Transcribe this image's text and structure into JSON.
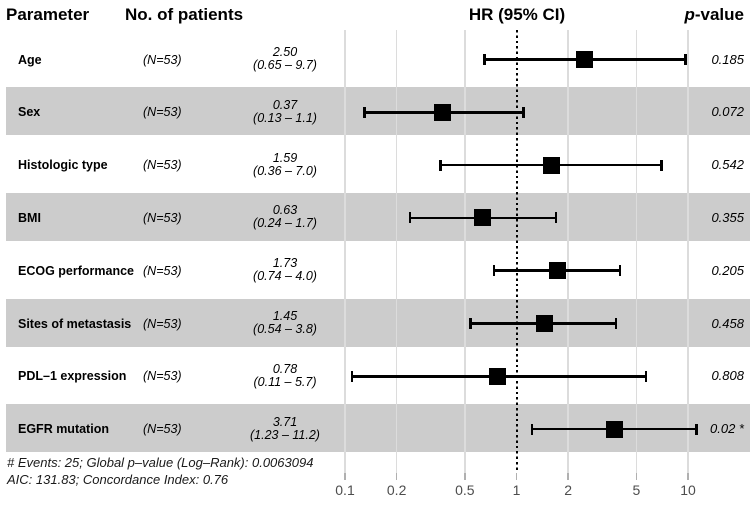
{
  "header": {
    "parameter": "Parameter",
    "patients": "No. of patients",
    "hr_ci": "HR (95% CI)",
    "pvalue_prefix": "p",
    "pvalue_suffix": "-value"
  },
  "chart_data": {
    "type": "forest",
    "x_axis": {
      "scale": "log10",
      "range": [
        0.1,
        10
      ],
      "ticks": [
        0.1,
        0.2,
        0.5,
        1,
        2,
        5,
        10
      ],
      "tick_labels": [
        "0.1",
        "0.2",
        "0.5",
        "1",
        "2",
        "5",
        "10"
      ],
      "reference_line": 1
    },
    "rows": [
      {
        "parameter": "Age",
        "n_label": "(N=53)",
        "estimate": 2.5,
        "ci_low": 0.65,
        "ci_high": 9.7,
        "estimate_label": "2.50",
        "ci_label": "(0.65 – 9.7)",
        "p_label": "0.185",
        "shaded": false
      },
      {
        "parameter": "Sex",
        "n_label": "(N=53)",
        "estimate": 0.37,
        "ci_low": 0.13,
        "ci_high": 1.1,
        "estimate_label": "0.37",
        "ci_label": "(0.13 – 1.1)",
        "p_label": "0.072",
        "shaded": true
      },
      {
        "parameter": "Histologic type",
        "n_label": "(N=53)",
        "estimate": 1.59,
        "ci_low": 0.36,
        "ci_high": 7.0,
        "estimate_label": "1.59",
        "ci_label": "(0.36 – 7.0)",
        "p_label": "0.542",
        "shaded": false
      },
      {
        "parameter": "BMI",
        "n_label": "(N=53)",
        "estimate": 0.63,
        "ci_low": 0.24,
        "ci_high": 1.7,
        "estimate_label": "0.63",
        "ci_label": "(0.24 – 1.7)",
        "p_label": "0.355",
        "shaded": true
      },
      {
        "parameter": "ECOG performance",
        "n_label": "(N=53)",
        "estimate": 1.73,
        "ci_low": 0.74,
        "ci_high": 4.0,
        "estimate_label": "1.73",
        "ci_label": "(0.74 – 4.0)",
        "p_label": "0.205",
        "shaded": false
      },
      {
        "parameter": "Sites of metastasis",
        "n_label": "(N=53)",
        "estimate": 1.45,
        "ci_low": 0.54,
        "ci_high": 3.8,
        "estimate_label": "1.45",
        "ci_label": "(0.54 – 3.8)",
        "p_label": "0.458",
        "shaded": true
      },
      {
        "parameter": "PDL–1 expression",
        "n_label": "(N=53)",
        "estimate": 0.78,
        "ci_low": 0.11,
        "ci_high": 5.7,
        "estimate_label": "0.78",
        "ci_label": "(0.11 – 5.7)",
        "p_label": "0.808",
        "shaded": false
      },
      {
        "parameter": "EGFR mutation",
        "n_label": "(N=53)",
        "estimate": 3.71,
        "ci_low": 1.23,
        "ci_high": 11.2,
        "estimate_label": "3.71",
        "ci_label": "(1.23 – 11.2)",
        "p_label": "0.02 *",
        "shaded": true
      }
    ],
    "footnotes": [
      "# Events: 25; Global p–value (Log–Rank): 0.0063094",
      "AIC: 131.83; Concordance Index: 0.76"
    ]
  },
  "colors": {
    "band": "#cccccc",
    "grid": "#dcdcdc",
    "reference": "#000000",
    "marker": "#000000",
    "tick": "#b0b0b0",
    "axis_text": "#4d4d4d",
    "text": "#000000"
  }
}
